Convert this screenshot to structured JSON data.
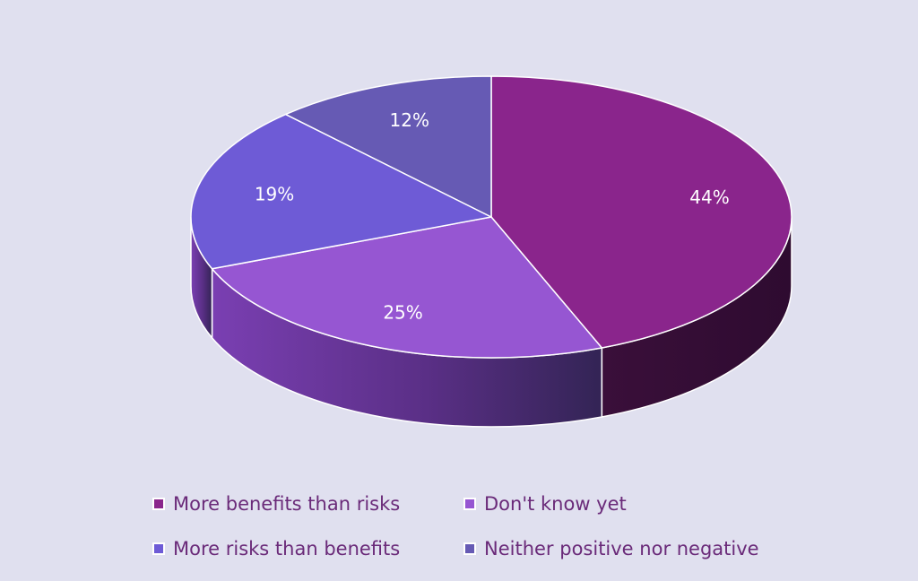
{
  "chart_data": {
    "type": "pie",
    "title": "",
    "categories": [
      "More benefits than risks",
      "Don't know yet",
      "More risks than benefits",
      "Neither positive nor negative"
    ],
    "values": [
      44,
      25,
      19,
      12
    ],
    "value_labels": [
      "44%",
      "25%",
      "19%",
      "12%"
    ],
    "colors": [
      "#8a258c",
      "#9656d2",
      "#6e5bd6",
      "#665ab4"
    ],
    "legend_position": "bottom"
  },
  "legend": {
    "items": [
      {
        "label": "More benefits than risks",
        "color": "#8a258c"
      },
      {
        "label": "Don't know yet",
        "color": "#9656d2"
      },
      {
        "label": "More risks than benefits",
        "color": "#6e5bd6"
      },
      {
        "label": "Neither positive nor negative",
        "color": "#665ab4"
      }
    ]
  }
}
